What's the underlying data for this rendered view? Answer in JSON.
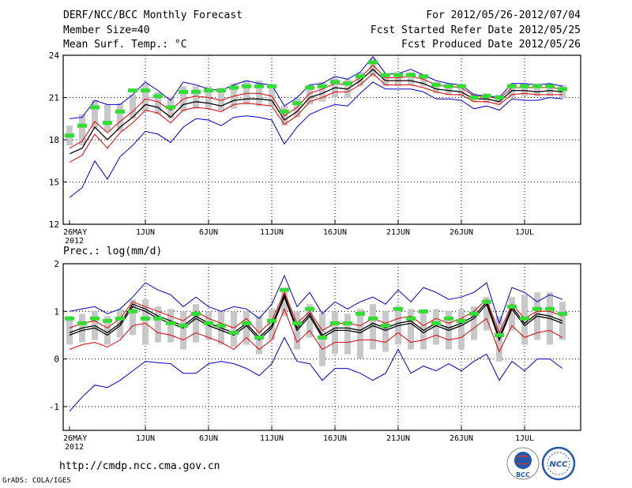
{
  "header": {
    "title": "DERF/NCC/BCC Monthly Forecast",
    "member_size": "Member Size=40",
    "variable": "Mean Surf. Temp.: °C",
    "forecast_period": "For 2012/05/26-2012/07/04",
    "started_refer": "Fcst Started Refer Date 2012/05/25",
    "produced": "Fcst Produced Date 2012/05/26"
  },
  "footer": {
    "url": "http://cmdp.ncc.cma.gov.cn",
    "credit": "GrADS: COLA/IGES"
  },
  "logos": {
    "bcc_label": "BCC",
    "ncc_label": "NCC"
  },
  "colors": {
    "upper_lower_bound": "#0000cc",
    "spread_band": "#dd0000",
    "ensemble_mean": "#000000",
    "box": "#c8c8c8",
    "marker": "#33dd33"
  },
  "chart_data": [
    {
      "type": "line",
      "title": "Mean Surf. Temp.: °C",
      "xlabel": "",
      "ylabel": "",
      "ylim": [
        12,
        24
      ],
      "yticks": [
        12,
        15,
        18,
        21,
        24
      ],
      "x_ticks": [
        {
          "label": "26MAY",
          "sub": "2012",
          "day": 0
        },
        {
          "label": "1JUN",
          "day": 6
        },
        {
          "label": "6JUN",
          "day": 11
        },
        {
          "label": "11JUN",
          "day": 16
        },
        {
          "label": "16JUN",
          "day": 21
        },
        {
          "label": "21JUN",
          "day": 26
        },
        {
          "label": "26JUN",
          "day": 31
        },
        {
          "label": "1JUL",
          "day": 36
        }
      ],
      "days": 40,
      "series": [
        {
          "name": "max",
          "color": "#0000cc",
          "values": [
            19.5,
            19.6,
            20.8,
            20.5,
            20.5,
            21.2,
            22.1,
            21.5,
            20.8,
            22.1,
            21.9,
            21.6,
            21.5,
            21.9,
            22.2,
            22.0,
            21.9,
            20.4,
            21.0,
            21.9,
            22.0,
            22.5,
            22.3,
            22.8,
            23.9,
            22.7,
            22.7,
            23.0,
            22.6,
            22.2,
            22.0,
            21.9,
            21.2,
            21.1,
            21.0,
            22.0,
            22.0,
            21.9,
            22.0,
            21.8
          ]
        },
        {
          "name": "min",
          "color": "#0000cc",
          "values": [
            13.9,
            14.6,
            16.5,
            15.2,
            16.8,
            17.6,
            18.6,
            18.4,
            17.8,
            18.9,
            19.5,
            19.4,
            19.0,
            19.6,
            19.7,
            19.6,
            19.4,
            17.7,
            18.9,
            19.8,
            20.2,
            20.5,
            20.4,
            21.3,
            22.1,
            21.6,
            21.6,
            21.6,
            21.4,
            20.9,
            20.9,
            20.8,
            20.2,
            20.4,
            20.1,
            20.9,
            20.8,
            20.8,
            21.0,
            20.9
          ]
        },
        {
          "name": "ensemble_mean",
          "color": "#000000",
          "values": [
            17.0,
            17.4,
            18.9,
            18.0,
            18.9,
            19.6,
            20.5,
            20.3,
            19.6,
            20.5,
            20.7,
            20.6,
            20.4,
            20.8,
            20.9,
            20.9,
            20.8,
            19.4,
            20.0,
            21.0,
            21.3,
            21.7,
            21.6,
            22.2,
            23.0,
            22.2,
            22.2,
            22.2,
            22.0,
            21.6,
            21.5,
            21.4,
            20.9,
            20.9,
            20.7,
            21.5,
            21.5,
            21.4,
            21.5,
            21.4
          ]
        },
        {
          "name": "upper_spread",
          "color": "#dd0000",
          "values": [
            17.4,
            17.9,
            19.3,
            18.5,
            19.3,
            20.0,
            20.9,
            20.7,
            20.1,
            20.9,
            21.1,
            21.0,
            20.8,
            21.1,
            21.3,
            21.3,
            21.1,
            19.7,
            20.3,
            21.3,
            21.6,
            22.0,
            21.9,
            22.4,
            23.3,
            22.4,
            22.4,
            22.5,
            22.3,
            21.9,
            21.8,
            21.7,
            21.1,
            21.1,
            20.9,
            21.7,
            21.7,
            21.7,
            21.7,
            21.6
          ]
        },
        {
          "name": "lower_spread",
          "color": "#dd0000",
          "values": [
            16.4,
            16.9,
            18.4,
            17.4,
            18.5,
            19.2,
            20.1,
            19.9,
            19.2,
            20.1,
            20.3,
            20.2,
            20.0,
            20.5,
            20.6,
            20.5,
            20.4,
            19.1,
            19.7,
            20.7,
            21.0,
            21.4,
            21.4,
            21.9,
            22.7,
            21.9,
            21.9,
            21.9,
            21.7,
            21.4,
            21.2,
            21.2,
            20.7,
            20.7,
            20.5,
            21.2,
            21.3,
            21.2,
            21.2,
            21.2
          ]
        }
      ],
      "markers": [
        18.3,
        19.0,
        20.3,
        19.2,
        20.0,
        21.5,
        21.5,
        21.1,
        20.3,
        21.4,
        21.4,
        21.5,
        21.5,
        21.7,
        21.8,
        21.8,
        21.8,
        20.0,
        20.6,
        21.7,
        21.8,
        22.1,
        22.0,
        22.5,
        23.5,
        22.6,
        22.6,
        22.6,
        22.5,
        21.9,
        21.8,
        21.8,
        21.0,
        21.1,
        21.0,
        21.8,
        21.8,
        21.8,
        21.8,
        21.6
      ],
      "boxes": [
        [
          17.6,
          19.0
        ],
        [
          17.6,
          19.8
        ],
        [
          18.8,
          20.8
        ],
        [
          18.6,
          20.5
        ],
        [
          18.6,
          20.6
        ],
        [
          19.5,
          21.2
        ],
        [
          20.0,
          22.0
        ],
        [
          19.8,
          21.4
        ],
        [
          19.5,
          21.0
        ],
        [
          20.0,
          21.8
        ],
        [
          20.2,
          21.8
        ],
        [
          20.2,
          21.8
        ],
        [
          20.1,
          21.7
        ],
        [
          20.2,
          22.0
        ],
        [
          20.5,
          22.2
        ],
        [
          20.4,
          22.2
        ],
        [
          20.4,
          21.9
        ],
        [
          19.0,
          20.4
        ],
        [
          19.6,
          21.0
        ],
        [
          20.5,
          21.9
        ],
        [
          20.7,
          22.1
        ],
        [
          21.0,
          22.4
        ],
        [
          21.0,
          22.3
        ],
        [
          21.8,
          22.8
        ],
        [
          22.5,
          23.8
        ],
        [
          21.8,
          22.7
        ],
        [
          21.8,
          22.8
        ],
        [
          21.9,
          22.8
        ],
        [
          21.8,
          22.6
        ],
        [
          21.3,
          22.1
        ],
        [
          21.2,
          22.0
        ],
        [
          21.1,
          21.9
        ],
        [
          20.7,
          21.3
        ],
        [
          20.6,
          21.3
        ],
        [
          20.6,
          21.2
        ],
        [
          21.0,
          22.0
        ],
        [
          21.1,
          22.0
        ],
        [
          21.1,
          22.0
        ],
        [
          21.1,
          22.0
        ],
        [
          21.0,
          21.9
        ]
      ]
    },
    {
      "type": "line",
      "title": "Prec.: log(mm/d)",
      "xlabel": "",
      "ylabel": "",
      "ylim": [
        -1.5,
        2
      ],
      "yticks": [
        -1,
        0,
        1,
        2
      ],
      "x_ticks": [
        {
          "label": "26MAY",
          "sub": "2012",
          "day": 0
        },
        {
          "label": "1JUN",
          "day": 6
        },
        {
          "label": "6JUN",
          "day": 11
        },
        {
          "label": "11JUN",
          "day": 16
        },
        {
          "label": "16JUN",
          "day": 21
        },
        {
          "label": "21JUN",
          "day": 26
        },
        {
          "label": "26JUN",
          "day": 31
        },
        {
          "label": "1JUL",
          "day": 36
        }
      ],
      "days": 40,
      "series": [
        {
          "name": "max",
          "color": "#0000cc",
          "values": [
            1.0,
            1.05,
            1.1,
            0.95,
            1.05,
            1.3,
            1.6,
            1.45,
            1.35,
            1.1,
            1.3,
            1.1,
            1.0,
            1.1,
            1.05,
            0.85,
            1.15,
            1.75,
            1.1,
            1.4,
            0.95,
            1.2,
            1.05,
            1.2,
            1.3,
            1.15,
            1.45,
            1.2,
            1.5,
            1.4,
            1.25,
            1.3,
            1.4,
            1.6,
            0.75,
            1.5,
            1.4,
            1.2,
            1.35,
            1.25
          ]
        },
        {
          "name": "min",
          "color": "#0000cc",
          "values": [
            -1.1,
            -0.8,
            -0.55,
            -0.6,
            -0.45,
            -0.25,
            -0.05,
            -0.08,
            -0.1,
            -0.3,
            -0.3,
            -0.1,
            -0.05,
            -0.1,
            -0.2,
            -0.35,
            -0.1,
            0.45,
            -0.05,
            -0.1,
            -0.45,
            -0.2,
            -0.2,
            -0.3,
            -0.45,
            -0.3,
            0.2,
            -0.3,
            -0.15,
            -0.25,
            -0.1,
            -0.25,
            -0.05,
            0.1,
            -0.45,
            -0.05,
            -0.25,
            0.0,
            0.0,
            -0.2
          ]
        },
        {
          "name": "ensemble_mean",
          "color": "#000000",
          "values": [
            0.55,
            0.65,
            0.7,
            0.55,
            0.75,
            1.15,
            1.05,
            0.9,
            0.8,
            0.7,
            0.9,
            0.75,
            0.65,
            0.55,
            0.75,
            0.45,
            0.7,
            1.35,
            0.65,
            0.95,
            0.5,
            0.65,
            0.65,
            0.6,
            0.75,
            0.65,
            0.75,
            0.8,
            0.6,
            0.75,
            0.65,
            0.75,
            0.9,
            1.2,
            0.45,
            1.1,
            0.75,
            0.95,
            0.9,
            0.8
          ]
        },
        {
          "name": "upper_spread",
          "color": "#dd0000",
          "values": [
            0.65,
            0.75,
            0.8,
            0.65,
            0.85,
            1.2,
            1.1,
            1.0,
            0.9,
            0.8,
            1.0,
            0.85,
            0.75,
            0.65,
            0.85,
            0.55,
            0.8,
            1.4,
            0.75,
            1.0,
            0.6,
            0.75,
            0.75,
            0.7,
            0.85,
            0.75,
            0.85,
            0.9,
            0.7,
            0.85,
            0.75,
            0.85,
            1.0,
            1.25,
            0.55,
            1.15,
            0.85,
            1.0,
            1.0,
            0.9
          ]
        },
        {
          "name": "lower_spread",
          "color": "#dd0000",
          "values": [
            0.2,
            0.3,
            0.35,
            0.25,
            0.4,
            0.7,
            0.75,
            0.55,
            0.5,
            0.4,
            0.55,
            0.45,
            0.35,
            0.2,
            0.45,
            0.2,
            0.4,
            1.05,
            0.35,
            0.6,
            0.2,
            0.35,
            0.35,
            0.4,
            0.4,
            0.35,
            0.55,
            0.35,
            0.4,
            0.5,
            0.4,
            0.45,
            0.65,
            0.85,
            0.15,
            0.7,
            0.45,
            0.55,
            0.6,
            0.45
          ]
        },
        {
          "name": "ensemble_mean_black",
          "color": "#000000",
          "values": [
            0.5,
            0.6,
            0.65,
            0.5,
            0.7,
            1.1,
            1.0,
            0.85,
            0.75,
            0.65,
            0.85,
            0.7,
            0.6,
            0.5,
            0.7,
            0.4,
            0.65,
            1.3,
            0.6,
            0.9,
            0.45,
            0.6,
            0.6,
            0.55,
            0.7,
            0.6,
            0.7,
            0.75,
            0.55,
            0.7,
            0.6,
            0.7,
            0.85,
            1.15,
            0.4,
            1.05,
            0.7,
            0.9,
            0.85,
            0.75
          ]
        }
      ],
      "markers": [
        0.85,
        0.75,
        0.85,
        0.8,
        0.85,
        1.0,
        0.85,
        0.85,
        0.75,
        0.7,
        0.95,
        0.75,
        0.7,
        0.55,
        0.75,
        0.45,
        0.8,
        1.45,
        0.75,
        1.05,
        0.45,
        0.75,
        0.75,
        0.95,
        0.85,
        0.7,
        1.05,
        0.85,
        1.0,
        0.75,
        0.85,
        0.8,
        0.95,
        1.2,
        0.5,
        1.1,
        0.85,
        1.05,
        1.05,
        0.95
      ],
      "boxes": [
        [
          0.3,
          0.9
        ],
        [
          0.35,
          0.95
        ],
        [
          0.4,
          1.0
        ],
        [
          0.3,
          0.9
        ],
        [
          0.45,
          1.05
        ],
        [
          0.5,
          1.25
        ],
        [
          0.3,
          1.25
        ],
        [
          0.35,
          1.1
        ],
        [
          0.35,
          1.05
        ],
        [
          0.2,
          1.0
        ],
        [
          0.35,
          1.15
        ],
        [
          0.4,
          1.0
        ],
        [
          0.3,
          1.0
        ],
        [
          0.25,
          1.0
        ],
        [
          0.3,
          1.0
        ],
        [
          0.1,
          0.9
        ],
        [
          0.4,
          1.05
        ],
        [
          0.9,
          1.5
        ],
        [
          0.2,
          1.0
        ],
        [
          0.45,
          1.15
        ],
        [
          -0.15,
          0.95
        ],
        [
          0.1,
          1.0
        ],
        [
          0.1,
          0.95
        ],
        [
          0.0,
          1.05
        ],
        [
          0.2,
          1.15
        ],
        [
          0.15,
          1.0
        ],
        [
          0.3,
          1.1
        ],
        [
          0.2,
          1.05
        ],
        [
          0.2,
          1.0
        ],
        [
          0.3,
          1.05
        ],
        [
          0.2,
          1.0
        ],
        [
          0.2,
          1.05
        ],
        [
          0.4,
          1.1
        ],
        [
          0.6,
          1.3
        ],
        [
          -0.05,
          0.9
        ],
        [
          0.6,
          1.3
        ],
        [
          0.3,
          1.35
        ],
        [
          0.4,
          1.4
        ],
        [
          0.3,
          1.4
        ],
        [
          0.4,
          1.2
        ]
      ]
    }
  ]
}
